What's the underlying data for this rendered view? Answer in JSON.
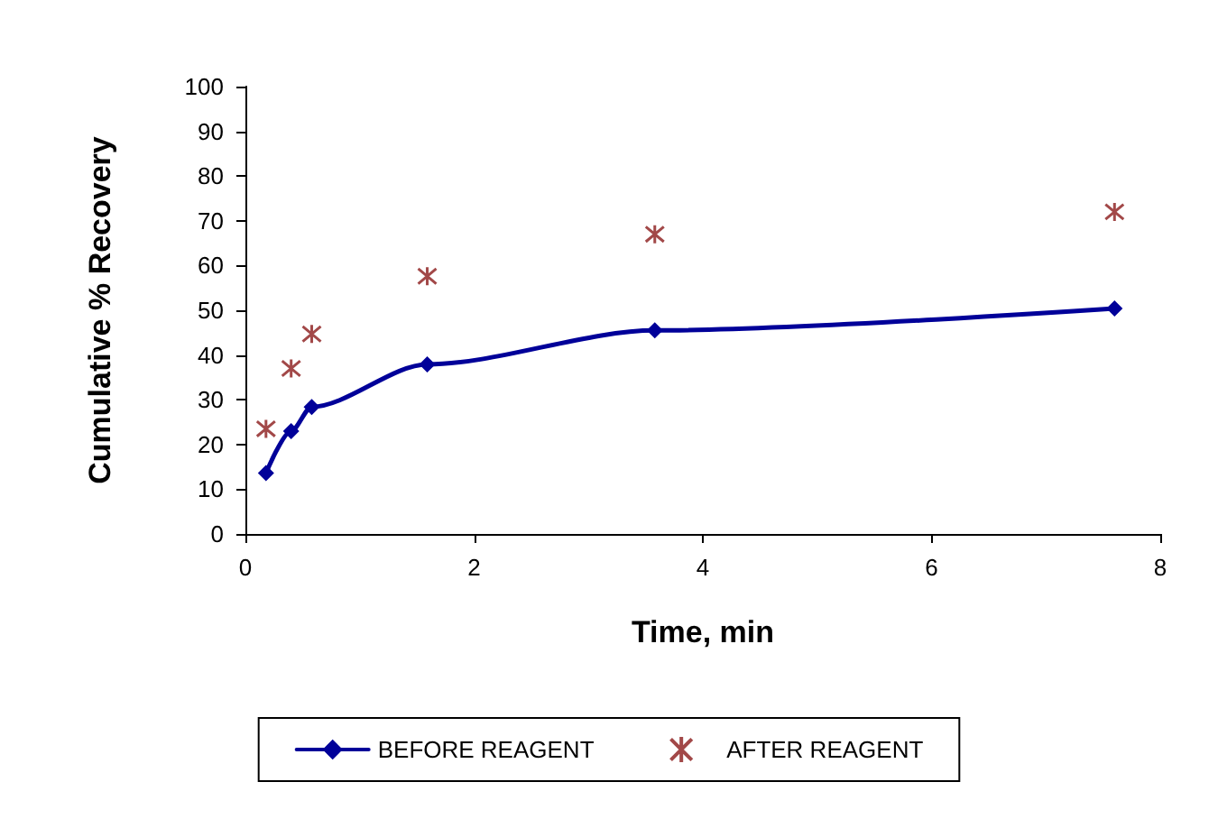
{
  "chart_data": {
    "type": "line",
    "xlabel": "Time, min",
    "ylabel": "Cumulative % Recovery",
    "xlim": [
      0,
      8
    ],
    "xticks": [
      0,
      2,
      4,
      6,
      8
    ],
    "ylim": [
      0,
      100
    ],
    "yticks": [
      0,
      10,
      20,
      30,
      40,
      50,
      60,
      70,
      80,
      90,
      100
    ],
    "grid": false,
    "legend": "bottom",
    "series": [
      {
        "name": "BEFORE REAGENT",
        "color": "#000099",
        "marker": "diamond",
        "x": [
          0.18,
          0.4,
          0.58,
          1.59,
          3.58,
          7.6
        ],
        "values": [
          13.6,
          23,
          28.4,
          37.9,
          45.5,
          50.4
        ]
      },
      {
        "name": "AFTER REAGENT",
        "type": "scatter",
        "color": "#8b1a1a",
        "marker": "cross",
        "x": [
          0.18,
          0.4,
          0.58,
          1.59,
          3.58,
          7.6
        ],
        "values": [
          23.5,
          37,
          44.7,
          57.6,
          67,
          72
        ]
      }
    ]
  }
}
